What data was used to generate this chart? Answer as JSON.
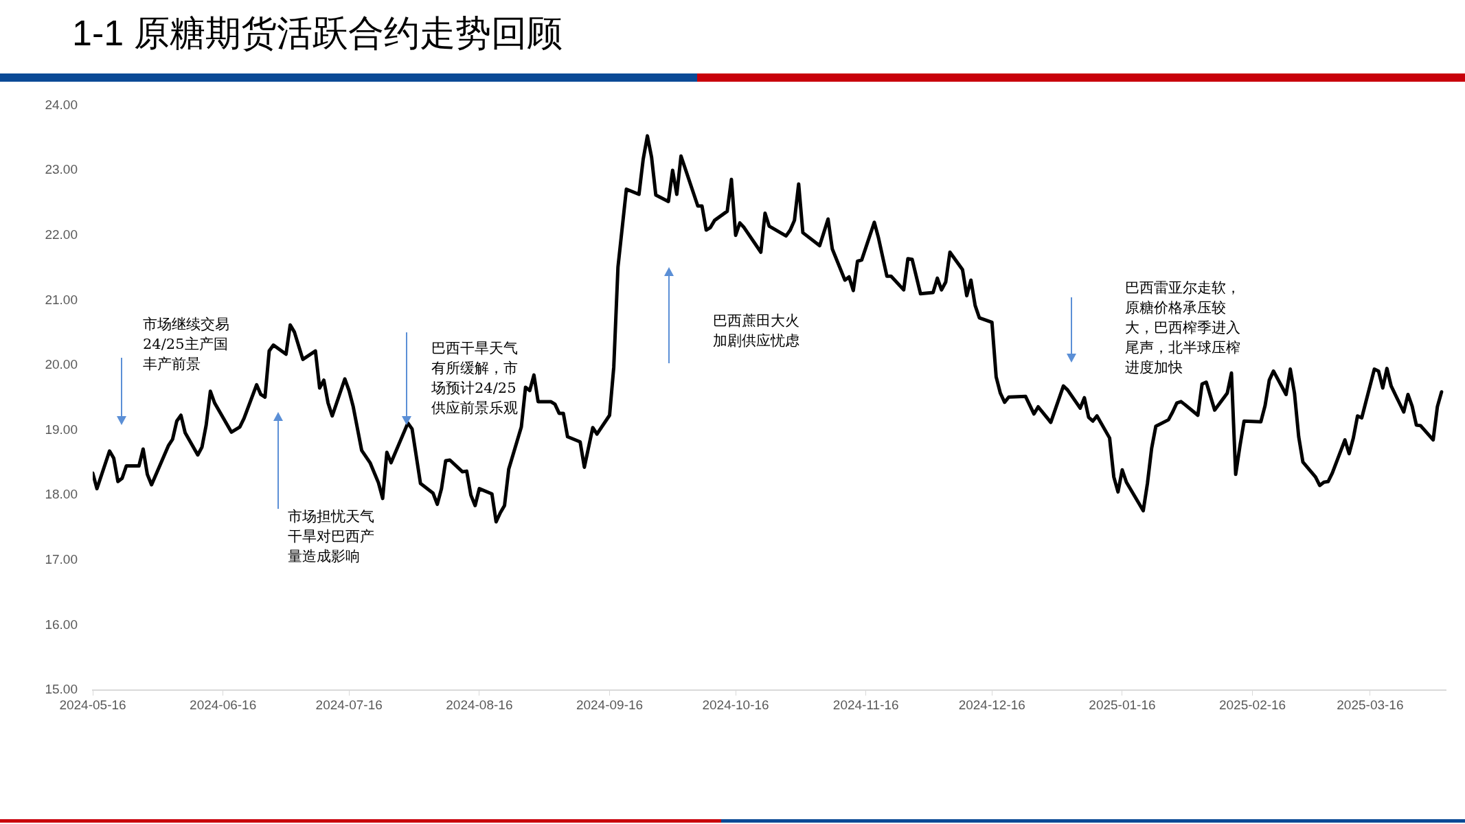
{
  "chart_data": {
    "type": "line",
    "title": "1-1 原糖期货活跃合约走势回顾",
    "x": [
      "2024-05-16",
      "2024-05-17",
      "2024-05-20",
      "2024-05-21",
      "2024-05-22",
      "2024-05-23",
      "2024-05-24",
      "2024-05-27",
      "2024-05-28",
      "2024-05-29",
      "2024-05-30",
      "2024-06-03",
      "2024-06-04",
      "2024-06-05",
      "2024-06-06",
      "2024-06-07",
      "2024-06-10",
      "2024-06-11",
      "2024-06-12",
      "2024-06-13",
      "2024-06-14",
      "2024-06-18",
      "2024-06-20",
      "2024-06-21",
      "2024-06-24",
      "2024-06-25",
      "2024-06-26",
      "2024-06-27",
      "2024-06-28",
      "2024-07-01",
      "2024-07-02",
      "2024-07-03",
      "2024-07-05",
      "2024-07-08",
      "2024-07-09",
      "2024-07-10",
      "2024-07-11",
      "2024-07-12",
      "2024-07-15",
      "2024-07-16",
      "2024-07-17",
      "2024-07-19",
      "2024-07-21",
      "2024-07-23",
      "2024-07-24",
      "2024-07-25",
      "2024-07-26",
      "2024-07-30",
      "2024-07-31",
      "2024-08-02",
      "2024-08-05",
      "2024-08-06",
      "2024-08-07",
      "2024-08-08",
      "2024-08-09",
      "2024-08-12",
      "2024-08-13",
      "2024-08-14",
      "2024-08-15",
      "2024-08-16",
      "2024-08-19",
      "2024-08-20",
      "2024-08-21",
      "2024-08-22",
      "2024-08-23",
      "2024-08-26",
      "2024-08-27",
      "2024-08-28",
      "2024-08-29",
      "2024-08-30",
      "2024-09-02",
      "2024-09-03",
      "2024-09-04",
      "2024-09-05",
      "2024-09-06",
      "2024-09-09",
      "2024-09-10",
      "2024-09-12",
      "2024-09-13",
      "2024-09-16",
      "2024-09-17",
      "2024-09-18",
      "2024-09-20",
      "2024-09-23",
      "2024-09-24",
      "2024-09-25",
      "2024-09-26",
      "2024-09-27",
      "2024-09-30",
      "2024-10-01",
      "2024-10-02",
      "2024-10-03",
      "2024-10-07",
      "2024-10-08",
      "2024-10-09",
      "2024-10-10",
      "2024-10-11",
      "2024-10-14",
      "2024-10-15",
      "2024-10-16",
      "2024-10-17",
      "2024-10-18",
      "2024-10-22",
      "2024-10-23",
      "2024-10-24",
      "2024-10-28",
      "2024-10-29",
      "2024-10-30",
      "2024-10-31",
      "2024-11-01",
      "2024-11-05",
      "2024-11-07",
      "2024-11-08",
      "2024-11-11",
      "2024-11-12",
      "2024-11-13",
      "2024-11-14",
      "2024-11-15",
      "2024-11-18",
      "2024-11-19",
      "2024-11-21",
      "2024-11-22",
      "2024-11-25",
      "2024-11-26",
      "2024-11-27",
      "2024-11-29",
      "2024-12-02",
      "2024-12-03",
      "2024-12-04",
      "2024-12-05",
      "2024-12-06",
      "2024-12-09",
      "2024-12-10",
      "2024-12-11",
      "2024-12-12",
      "2024-12-13",
      "2024-12-16",
      "2024-12-17",
      "2024-12-18",
      "2024-12-19",
      "2024-12-20",
      "2024-12-24",
      "2024-12-26",
      "2024-12-27",
      "2024-12-30",
      "2025-01-02",
      "2025-01-03",
      "2025-01-06",
      "2025-01-07",
      "2025-01-08",
      "2025-01-09",
      "2025-01-10",
      "2025-01-13",
      "2025-01-14",
      "2025-01-15",
      "2025-01-16",
      "2025-01-17",
      "2025-01-21",
      "2025-01-22",
      "2025-01-23",
      "2025-01-24",
      "2025-01-27",
      "2025-01-28",
      "2025-01-29",
      "2025-01-30",
      "2025-01-31",
      "2025-02-03",
      "2025-02-04",
      "2025-02-05",
      "2025-02-07",
      "2025-02-10",
      "2025-02-11",
      "2025-02-12",
      "2025-02-13",
      "2025-02-14",
      "2025-02-18",
      "2025-02-19",
      "2025-02-20",
      "2025-02-21",
      "2025-02-24",
      "2025-02-25",
      "2025-02-26",
      "2025-02-27",
      "2025-02-28",
      "2025-03-03",
      "2025-03-04",
      "2025-03-05",
      "2025-03-06",
      "2025-03-07",
      "2025-03-10",
      "2025-03-11",
      "2025-03-12",
      "2025-03-13",
      "2025-03-14",
      "2025-03-17",
      "2025-03-18",
      "2025-03-19",
      "2025-03-20",
      "2025-03-21",
      "2025-03-24",
      "2025-03-25",
      "2025-03-26",
      "2025-03-27",
      "2025-03-28",
      "2025-03-31",
      "2025-04-01",
      "2025-04-02"
    ],
    "series": [
      {
        "color": "#000000",
        "values": [
          18.34,
          18.1,
          18.68,
          18.57,
          18.21,
          18.26,
          18.45,
          18.45,
          18.71,
          18.32,
          18.16,
          18.76,
          18.86,
          19.14,
          19.23,
          18.96,
          18.62,
          18.74,
          19.08,
          19.6,
          19.42,
          18.97,
          19.05,
          19.18,
          19.7,
          19.55,
          19.51,
          20.22,
          20.31,
          20.17,
          20.62,
          20.51,
          20.09,
          20.22,
          19.65,
          19.77,
          19.42,
          19.22,
          19.79,
          19.61,
          19.36,
          18.69,
          18.5,
          18.19,
          17.95,
          18.66,
          18.5,
          19.11,
          19.02,
          18.18,
          18.03,
          17.86,
          18.1,
          18.53,
          18.54,
          18.36,
          18.37,
          18.0,
          17.84,
          18.1,
          18.02,
          17.59,
          17.73,
          17.84,
          18.4,
          19.05,
          19.66,
          19.61,
          19.85,
          19.44,
          19.44,
          19.4,
          19.26,
          19.26,
          18.9,
          18.82,
          18.43,
          19.04,
          18.94,
          19.23,
          19.97,
          21.51,
          22.71,
          22.63,
          23.17,
          23.53,
          23.2,
          22.62,
          22.52,
          23.0,
          22.63,
          23.22,
          22.45,
          22.45,
          22.08,
          22.12,
          22.23,
          22.37,
          22.86,
          22.0,
          22.19,
          22.12,
          21.74,
          22.34,
          22.14,
          21.99,
          22.08,
          22.23,
          22.79,
          22.04,
          21.84,
          22.25,
          21.79,
          21.31,
          21.36,
          21.15,
          21.6,
          21.62,
          22.2,
          21.96,
          21.37,
          21.37,
          21.16,
          21.64,
          21.63,
          21.1,
          21.12,
          21.34,
          21.16,
          21.28,
          21.74,
          21.47,
          21.07,
          21.31,
          20.92,
          20.73,
          20.66,
          19.82,
          19.57,
          19.43,
          19.51,
          19.52,
          19.25,
          19.36,
          19.12,
          19.68,
          19.62,
          19.34,
          19.5,
          19.2,
          19.14,
          19.22,
          18.88,
          18.28,
          18.05,
          18.39,
          18.2,
          17.76,
          18.18,
          18.72,
          19.06,
          19.16,
          19.28,
          19.42,
          19.44,
          19.39,
          19.23,
          19.71,
          19.74,
          19.31,
          19.57,
          19.88,
          18.32,
          18.75,
          19.14,
          19.13,
          19.38,
          19.77,
          19.91,
          19.55,
          19.94,
          19.57,
          18.9,
          18.51,
          18.28,
          18.15,
          18.2,
          18.21,
          18.34,
          18.85,
          18.64,
          18.88,
          19.22,
          19.19,
          19.94,
          19.91,
          19.65,
          19.95,
          19.68,
          19.28,
          19.55,
          19.37,
          19.08,
          19.07,
          18.85,
          19.36,
          19.59
        ]
      }
    ],
    "xlim": [
      "2024-05-16",
      "2025-04-03"
    ],
    "xticks": [
      "2024-05-16",
      "2024-06-16",
      "2024-07-16",
      "2024-08-16",
      "2024-09-16",
      "2024-10-16",
      "2024-11-16",
      "2024-12-16",
      "2025-01-16",
      "2025-02-16",
      "2025-03-16"
    ],
    "ylim": [
      15,
      24
    ],
    "yticks": [
      {
        "value": 15,
        "label": "15.00"
      },
      {
        "value": 16,
        "label": "16.00"
      },
      {
        "value": 17,
        "label": "17.00"
      },
      {
        "value": 18,
        "label": "18.00"
      },
      {
        "value": 19,
        "label": "19.00"
      },
      {
        "value": 20,
        "label": "20.00"
      },
      {
        "value": 21,
        "label": "21.00"
      },
      {
        "value": 22,
        "label": "22.00"
      },
      {
        "value": 23,
        "label": "23.00"
      },
      {
        "value": 24,
        "label": "24.00"
      }
    ],
    "grid": false,
    "legend": false,
    "line_style": "solid",
    "annotations": [
      "市场继续交易24/25主产国丰产前景",
      "市场担忧天气干旱对巴西产量造成影响",
      "巴西干旱天气有所缓解，市场预计24/25供应前景乐观",
      "巴西蔗田大火加剧供应忧虑",
      "巴西雷亚尔走软，原糖价格承压较大，巴西榨季进入尾声，北半球压榨进度加快"
    ]
  }
}
